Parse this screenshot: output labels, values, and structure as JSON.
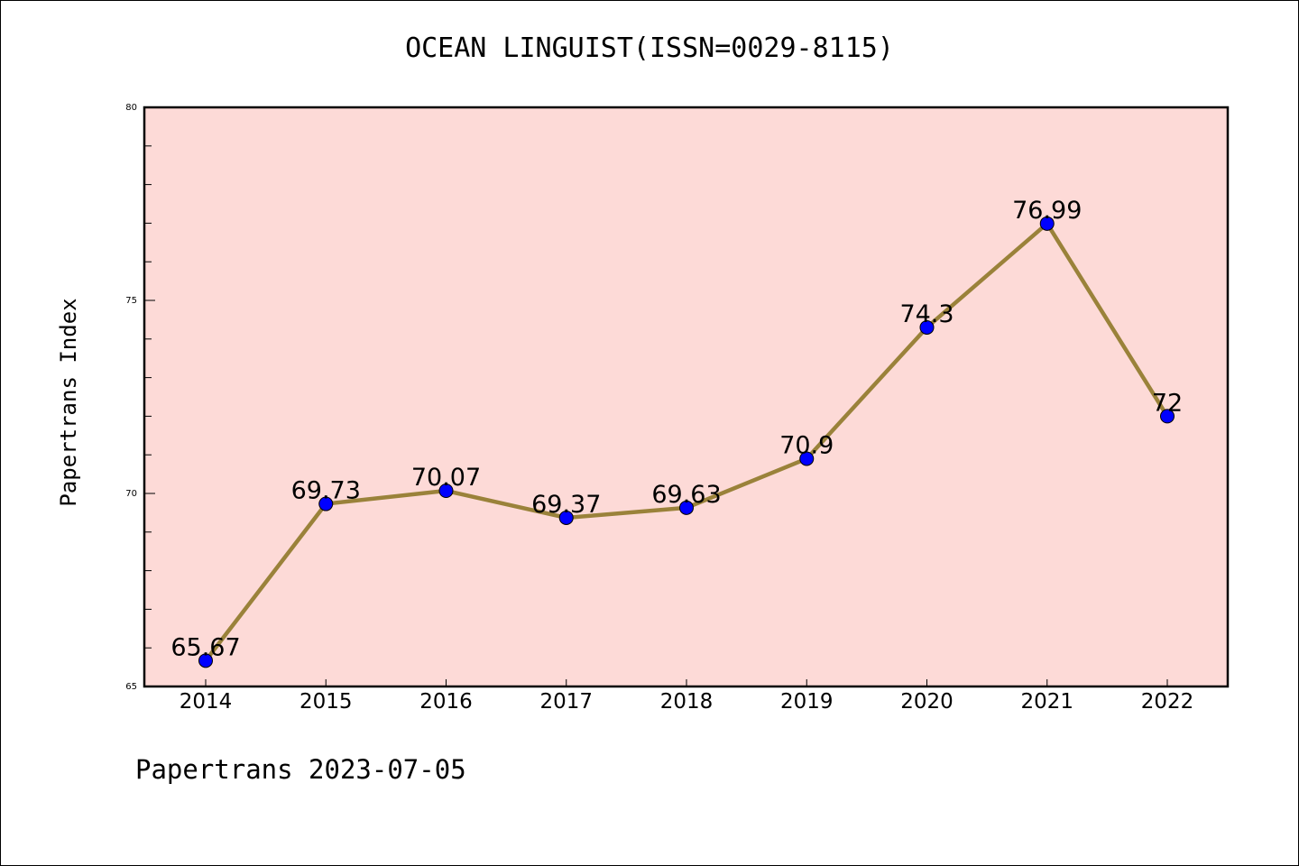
{
  "chart_data": {
    "type": "line",
    "title": "OCEAN LINGUIST(ISSN=0029-8115)",
    "xlabel": "",
    "ylabel": "Papertrans Index",
    "categories": [
      "2014",
      "2015",
      "2016",
      "2017",
      "2018",
      "2019",
      "2020",
      "2021",
      "2022"
    ],
    "values": [
      65.67,
      69.73,
      70.07,
      69.37,
      69.63,
      70.9,
      74.3,
      76.99,
      72
    ],
    "data_labels": [
      "65.67",
      "69.73",
      "70.07",
      "69.37",
      "69.63",
      "70.9",
      "74.3",
      "76.99",
      "72"
    ],
    "ylim": [
      65,
      80
    ],
    "yticks": [
      "65",
      "70",
      "75",
      "80"
    ],
    "grid": false,
    "colors": {
      "plot_background": "#fddad7",
      "line": "#9a823a",
      "marker": "#0000ff"
    }
  },
  "footer": "Papertrans 2023-07-05"
}
